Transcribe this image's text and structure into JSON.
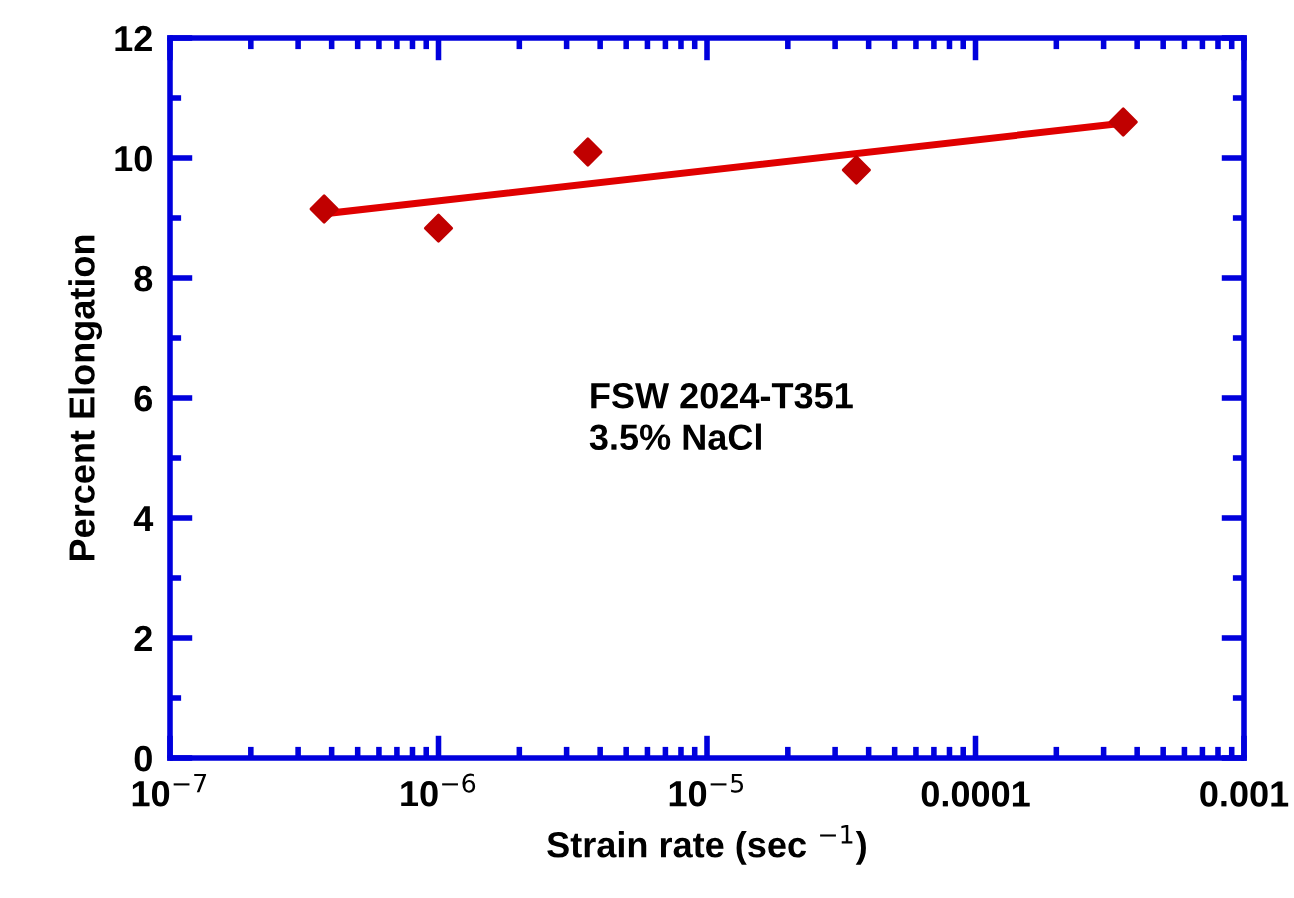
{
  "chart_data": {
    "type": "scatter",
    "xlabel": "Strain rate (sec $^{−1}$)",
    "ylabel": "Percent Elongation",
    "log": "x",
    "grid": false,
    "legend": false,
    "marker": "diamond",
    "annotations": [
      "FSW 2024-T351\n3.5% NaCl"
    ],
    "xlim": [
      1e-07,
      0.001
    ],
    "ylim": [
      0,
      12
    ],
    "xticks": [
      {
        "value": 1e-07,
        "label": "10$^{−7}$"
      },
      {
        "value": 1e-06,
        "label": "10$^{−6}$"
      },
      {
        "value": 1e-05,
        "label": "10$^{−5}$"
      },
      {
        "value": 0.0001,
        "label": "0.0001"
      },
      {
        "value": 0.001,
        "label": "0.001"
      }
    ],
    "yticks": [
      0,
      2,
      4,
      6,
      8,
      10,
      12
    ],
    "series": [
      {
        "color": "#c00000",
        "x": [
          3.75e-07,
          1e-06,
          3.6e-06,
          3.6e-05,
          0.000355
        ],
        "values": [
          9.15,
          8.83,
          10.1,
          9.8,
          10.6
        ]
      },
      {
        "type": "line",
        "color": "#e00000",
        "marker": "none",
        "x": [
          3.75e-07,
          0.000355
        ],
        "values": [
          9.07,
          10.58
        ]
      }
    ]
  }
}
